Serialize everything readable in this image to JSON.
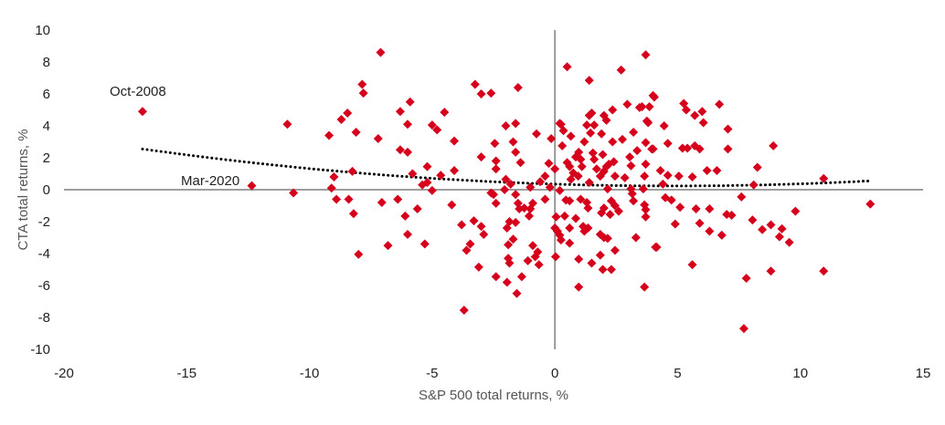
{
  "chart_data": {
    "type": "scatter",
    "title": "",
    "xlabel": "S&P 500 total returns, %",
    "ylabel": "CTA total returns, %",
    "xlim": [
      -20,
      15
    ],
    "ylim": [
      -10,
      10
    ],
    "xticks": [
      -20,
      -15,
      -10,
      -5,
      0,
      5,
      10,
      15
    ],
    "yticks": [
      10,
      8,
      6,
      4,
      2,
      0,
      -2,
      -4,
      -6,
      -8,
      -10
    ],
    "grid": false,
    "legend": "none",
    "marker": "diamond",
    "colors": {
      "points": "#d6001c",
      "trendline": "#000000",
      "axes": "#7f7f7f"
    },
    "trendline": {
      "type": "polynomial",
      "style": "dotted",
      "x_range": [
        -16.8,
        12.8
      ],
      "coefficients": {
        "a": 0.004952,
        "b": -0.04776,
        "c": 0.35
      }
    },
    "annotations": [
      {
        "text": "Oct-2008",
        "x": -16.8,
        "y": 4.9
      },
      {
        "text": "Mar-2020",
        "x": -12.35,
        "y": 0.25
      }
    ],
    "points": [
      [
        -16.8,
        4.9
      ],
      [
        -12.35,
        0.25
      ],
      [
        -10.9,
        4.1
      ],
      [
        -10.65,
        -0.2
      ],
      [
        -9.2,
        3.4
      ],
      [
        -9.0,
        0.8
      ],
      [
        -9.1,
        0.1
      ],
      [
        -8.9,
        -0.6
      ],
      [
        -8.4,
        -0.6
      ],
      [
        -8.2,
        -1.5
      ],
      [
        -8.0,
        -4.05
      ],
      [
        -8.25,
        1.15
      ],
      [
        -8.7,
        4.4
      ],
      [
        -8.45,
        4.8
      ],
      [
        -8.1,
        3.6
      ],
      [
        -7.85,
        6.6
      ],
      [
        -7.8,
        6.05
      ],
      [
        -7.1,
        8.6
      ],
      [
        -7.2,
        3.2
      ],
      [
        -7.05,
        -0.8
      ],
      [
        -6.8,
        -3.5
      ],
      [
        -6.3,
        4.9
      ],
      [
        -5.9,
        5.5
      ],
      [
        -6.3,
        2.5
      ],
      [
        -6.0,
        2.35
      ],
      [
        -6.0,
        4.1
      ],
      [
        -6.4,
        -0.6
      ],
      [
        -6.1,
        -1.65
      ],
      [
        -6.0,
        -2.8
      ],
      [
        -5.6,
        -1.2
      ],
      [
        -5.8,
        1.0
      ],
      [
        -5.4,
        0.3
      ],
      [
        -5.2,
        0.45
      ],
      [
        -5.2,
        1.45
      ],
      [
        -5.0,
        -0.05
      ],
      [
        -5.3,
        -3.4
      ],
      [
        -5.0,
        4.05
      ],
      [
        -4.8,
        3.75
      ],
      [
        -4.5,
        4.85
      ],
      [
        -4.65,
        0.9
      ],
      [
        -4.1,
        3.05
      ],
      [
        -4.1,
        1.2
      ],
      [
        -4.2,
        -0.95
      ],
      [
        -3.8,
        -2.2
      ],
      [
        -3.3,
        -1.95
      ],
      [
        -3.0,
        -2.3
      ],
      [
        -2.9,
        -2.8
      ],
      [
        -3.45,
        -3.4
      ],
      [
        -3.6,
        -3.8
      ],
      [
        -3.1,
        -4.85
      ],
      [
        -3.7,
        -7.55
      ],
      [
        -3.25,
        6.6
      ],
      [
        -3.0,
        6.0
      ],
      [
        -2.6,
        6.05
      ],
      [
        -3.0,
        2.05
      ],
      [
        -2.45,
        2.9
      ],
      [
        -2.4,
        1.8
      ],
      [
        -2.4,
        1.3
      ],
      [
        -2.6,
        -0.2
      ],
      [
        -2.5,
        -0.3
      ],
      [
        -2.4,
        -0.85
      ],
      [
        -2.0,
        4.0
      ],
      [
        -1.6,
        4.15
      ],
      [
        -1.7,
        3.0
      ],
      [
        -1.6,
        2.35
      ],
      [
        -1.4,
        1.7
      ],
      [
        -1.5,
        6.4
      ],
      [
        -2.0,
        0.65
      ],
      [
        -2.05,
        0.0
      ],
      [
        -1.6,
        -0.3
      ],
      [
        -1.5,
        -0.85
      ],
      [
        -1.45,
        -1.2
      ],
      [
        -1.25,
        -1.15
      ],
      [
        -1.0,
        -1.2
      ],
      [
        -0.9,
        -0.85
      ],
      [
        -1.05,
        -1.65
      ],
      [
        -1.85,
        -2.0
      ],
      [
        -1.6,
        -2.05
      ],
      [
        -1.95,
        -2.4
      ],
      [
        -1.7,
        -3.1
      ],
      [
        -1.9,
        -3.45
      ],
      [
        -1.9,
        -4.3
      ],
      [
        -1.85,
        -4.6
      ],
      [
        -2.4,
        -5.45
      ],
      [
        -1.95,
        -5.8
      ],
      [
        -1.55,
        -6.5
      ],
      [
        -1.35,
        -5.45
      ],
      [
        -1.1,
        -4.45
      ],
      [
        -0.9,
        -3.5
      ],
      [
        -0.7,
        -3.9
      ],
      [
        -0.8,
        -4.2
      ],
      [
        -0.65,
        -4.7
      ],
      [
        -0.4,
        -0.6
      ],
      [
        -0.75,
        3.5
      ],
      [
        -0.15,
        3.2
      ],
      [
        -0.25,
        1.65
      ],
      [
        -0.4,
        0.85
      ],
      [
        -0.6,
        0.5
      ],
      [
        -1.0,
        0.15
      ],
      [
        -1.8,
        0.35
      ],
      [
        -0.2,
        0.15
      ],
      [
        0.0,
        1.3
      ],
      [
        0.03,
        -4.2
      ],
      [
        0.2,
        -0.05
      ],
      [
        0.05,
        -1.7
      ],
      [
        0.0,
        -2.4
      ],
      [
        0.1,
        -2.6
      ],
      [
        0.2,
        -2.85
      ],
      [
        0.25,
        -3.15
      ],
      [
        0.4,
        -1.65
      ],
      [
        0.45,
        -0.65
      ],
      [
        0.6,
        -0.7
      ],
      [
        0.6,
        -3.35
      ],
      [
        0.5,
        7.7
      ],
      [
        0.2,
        4.15
      ],
      [
        0.25,
        4.1
      ],
      [
        0.35,
        3.7
      ],
      [
        0.65,
        3.35
      ],
      [
        0.3,
        2.75
      ],
      [
        0.5,
        1.7
      ],
      [
        0.6,
        1.45
      ],
      [
        0.75,
        1.05
      ],
      [
        0.85,
        2.05
      ],
      [
        0.97,
        2.35
      ],
      [
        1.05,
        1.9
      ],
      [
        0.65,
        0.65
      ],
      [
        0.95,
        0.85
      ],
      [
        1.1,
        1.45
      ],
      [
        1.2,
        3.0
      ],
      [
        1.3,
        4.05
      ],
      [
        1.4,
        4.65
      ],
      [
        1.5,
        4.8
      ],
      [
        1.6,
        4.05
      ],
      [
        1.45,
        3.55
      ],
      [
        1.55,
        2.3
      ],
      [
        1.6,
        1.9
      ],
      [
        1.7,
        1.3
      ],
      [
        1.4,
        0.45
      ],
      [
        1.4,
        6.85
      ],
      [
        1.05,
        -0.6
      ],
      [
        1.3,
        -0.8
      ],
      [
        1.35,
        -1.15
      ],
      [
        0.85,
        -1.8
      ],
      [
        0.6,
        -2.4
      ],
      [
        1.15,
        -2.3
      ],
      [
        1.2,
        -2.6
      ],
      [
        1.35,
        -2.4
      ],
      [
        0.97,
        -4.35
      ],
      [
        0.97,
        -6.1
      ],
      [
        1.5,
        -4.6
      ],
      [
        1.85,
        -2.8
      ],
      [
        2.0,
        -3.0
      ],
      [
        2.15,
        -3.05
      ],
      [
        1.85,
        -4.1
      ],
      [
        1.95,
        -5.0
      ],
      [
        2.3,
        -5.0
      ],
      [
        2.45,
        -3.8
      ],
      [
        1.9,
        -1.45
      ],
      [
        2.0,
        -1.15
      ],
      [
        2.25,
        -1.55
      ],
      [
        2.3,
        -0.7
      ],
      [
        2.45,
        -1.0
      ],
      [
        2.6,
        -1.35
      ],
      [
        2.15,
        0.05
      ],
      [
        1.85,
        0.85
      ],
      [
        2.0,
        1.15
      ],
      [
        2.1,
        1.45
      ],
      [
        2.2,
        1.6
      ],
      [
        1.95,
        2.2
      ],
      [
        1.9,
        3.5
      ],
      [
        2.0,
        4.65
      ],
      [
        2.1,
        4.35
      ],
      [
        2.35,
        5.0
      ],
      [
        2.35,
        3.0
      ],
      [
        2.4,
        1.75
      ],
      [
        2.45,
        0.85
      ],
      [
        2.7,
        7.5
      ],
      [
        2.95,
        5.35
      ],
      [
        2.75,
        3.15
      ],
      [
        2.85,
        0.75
      ],
      [
        3.05,
        2.05
      ],
      [
        3.1,
        1.5
      ],
      [
        3.2,
        3.6
      ],
      [
        3.35,
        2.45
      ],
      [
        3.45,
        5.15
      ],
      [
        3.7,
        8.45
      ],
      [
        3.75,
        4.3
      ],
      [
        3.7,
        2.95
      ],
      [
        3.7,
        1.6
      ],
      [
        3.65,
        0.85
      ],
      [
        3.1,
        0.05
      ],
      [
        3.15,
        -0.25
      ],
      [
        3.2,
        -0.7
      ],
      [
        3.6,
        0.05
      ],
      [
        3.65,
        -0.95
      ],
      [
        3.7,
        -1.25
      ],
      [
        3.7,
        -1.7
      ],
      [
        3.3,
        -3.0
      ],
      [
        3.65,
        -6.1
      ],
      [
        4.1,
        -3.6
      ],
      [
        4.0,
        5.9
      ],
      [
        3.95,
        2.55
      ],
      [
        4.05,
        5.8
      ],
      [
        3.85,
        5.2
      ],
      [
        3.55,
        5.2
      ],
      [
        3.8,
        4.2
      ],
      [
        4.45,
        4.0
      ],
      [
        4.0,
        2.55
      ],
      [
        4.6,
        2.9
      ],
      [
        4.3,
        1.2
      ],
      [
        4.6,
        0.9
      ],
      [
        4.4,
        0.35
      ],
      [
        4.5,
        -0.5
      ],
      [
        4.75,
        -0.65
      ],
      [
        5.1,
        -1.1
      ],
      [
        5.05,
        0.85
      ],
      [
        5.25,
        5.4
      ],
      [
        5.35,
        5.0
      ],
      [
        5.2,
        2.6
      ],
      [
        5.4,
        2.6
      ],
      [
        5.7,
        2.75
      ],
      [
        5.9,
        2.55
      ],
      [
        5.7,
        4.65
      ],
      [
        6.0,
        4.9
      ],
      [
        6.05,
        4.2
      ],
      [
        6.7,
        5.35
      ],
      [
        7.05,
        3.8
      ],
      [
        7.05,
        2.55
      ],
      [
        6.2,
        1.2
      ],
      [
        6.6,
        1.2
      ],
      [
        5.6,
        0.8
      ],
      [
        4.9,
        -2.15
      ],
      [
        5.75,
        -1.2
      ],
      [
        5.9,
        -2.1
      ],
      [
        6.3,
        -1.2
      ],
      [
        6.3,
        -2.6
      ],
      [
        6.8,
        -2.85
      ],
      [
        7.0,
        -1.55
      ],
      [
        7.2,
        -1.6
      ],
      [
        7.6,
        -0.45
      ],
      [
        4.15,
        -3.6
      ],
      [
        5.6,
        -4.7
      ],
      [
        7.8,
        -5.55
      ],
      [
        7.7,
        -8.7
      ],
      [
        8.05,
        -1.9
      ],
      [
        8.1,
        0.3
      ],
      [
        8.25,
        1.4
      ],
      [
        8.45,
        -2.5
      ],
      [
        8.8,
        -2.2
      ],
      [
        8.8,
        -5.1
      ],
      [
        8.9,
        2.75
      ],
      [
        9.25,
        -2.45
      ],
      [
        9.15,
        -2.95
      ],
      [
        9.55,
        -3.3
      ],
      [
        9.8,
        -1.35
      ],
      [
        10.95,
        0.7
      ],
      [
        10.95,
        -5.1
      ],
      [
        12.85,
        -0.9
      ]
    ]
  }
}
